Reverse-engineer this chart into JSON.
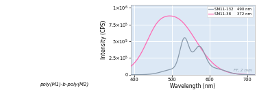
{
  "xlabel": "Wavelength (nm)",
  "ylabel": "Intensity (CPS)",
  "xlim": [
    390,
    720
  ],
  "ylim": [
    0,
    1050000.0
  ],
  "yticks": [
    0,
    250000.0,
    500000.0,
    750000.0,
    1000000.0
  ],
  "xticks": [
    400,
    500,
    600,
    700
  ],
  "plot_bg": "#dce8f5",
  "grid_color": "#ffffff",
  "sm11_132_color": "#8899aa",
  "sm11_38_color": "#ff69b4",
  "legend_labels": [
    "SM11-132   490 nm",
    "SM11-38     372 nm"
  ],
  "annotation": "FF, 2 mm",
  "label_fontsize": 5.5,
  "tick_fontsize": 4.8,
  "fig_width": 3.78,
  "fig_height": 1.31,
  "struct_text": "poly(M1)-b-poly(M2)",
  "struct_text_fontsize": 5.0
}
